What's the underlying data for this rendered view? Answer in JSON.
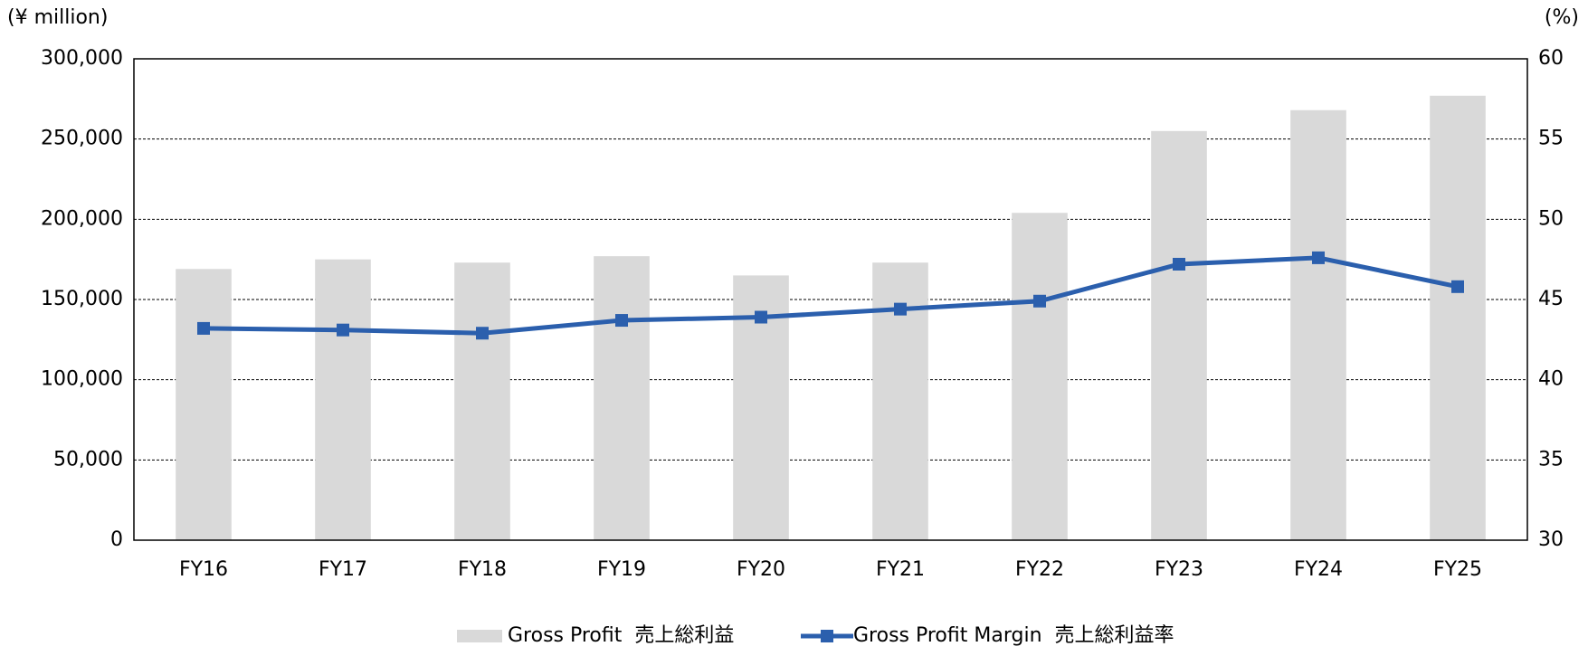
{
  "chart_data": {
    "type": "bar_line",
    "y_axis_label": "(¥ million)",
    "y2_axis_label": "(%)",
    "categories": [
      "FY16",
      "FY17",
      "FY18",
      "FY19",
      "FY20",
      "FY21",
      "FY22",
      "FY23",
      "FY24",
      "FY25"
    ],
    "series": [
      {
        "name": "Gross Profit  売上総利益",
        "type": "bar",
        "color": "#d9d9d9",
        "values": [
          169000,
          175000,
          173000,
          177000,
          165000,
          173000,
          204000,
          255000,
          268000,
          277000
        ]
      },
      {
        "name": "Gross Profit Margin  売上総利益率",
        "type": "line",
        "axis": "y2",
        "color": "#2b5fad",
        "values": [
          43.2,
          43.1,
          42.9,
          43.7,
          43.9,
          44.4,
          44.9,
          47.2,
          47.6,
          45.8
        ]
      }
    ],
    "ylim": [
      0,
      300000
    ],
    "yticks": [
      0,
      {
        "value": 50000,
        "label": "50,000"
      },
      {
        "value": 100000,
        "label": "100,000"
      },
      {
        "value": 150000,
        "label": "150,000"
      },
      {
        "value": 200000,
        "label": "200,000"
      },
      {
        "value": 250000,
        "label": "250,000"
      },
      {
        "value": 300000,
        "label": "300,000"
      }
    ],
    "y2lim": [
      30,
      60
    ],
    "y2ticks": [
      30,
      35,
      40,
      45,
      50,
      55,
      60
    ],
    "grid": true,
    "legend": "bottom"
  }
}
